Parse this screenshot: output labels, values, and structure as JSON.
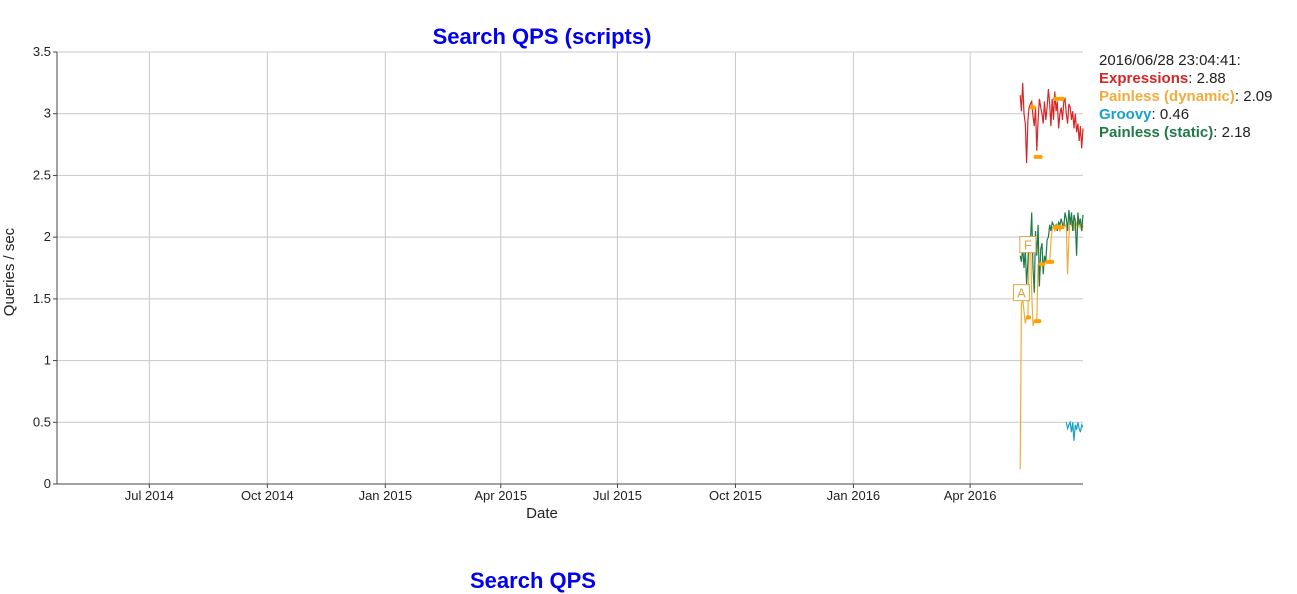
{
  "chart_data": {
    "type": "line",
    "title": "Search QPS (scripts)",
    "title_color": "#0000ee",
    "xlabel": "Date",
    "ylabel": "Queries / sec",
    "ylim": [
      0,
      3.5
    ],
    "xlim": [
      "2014-04-20",
      "2016-06-28"
    ],
    "yticks": [
      "0",
      "0.5",
      "1",
      "1.5",
      "2",
      "2.5",
      "3",
      "3.5"
    ],
    "xticks": [
      {
        "date": "2014-07-01",
        "label": "Jul 2014"
      },
      {
        "date": "2014-10-01",
        "label": "Oct 2014"
      },
      {
        "date": "2015-01-01",
        "label": "Jan 2015"
      },
      {
        "date": "2015-04-01",
        "label": "Apr 2015"
      },
      {
        "date": "2015-07-01",
        "label": "Jul 2015"
      },
      {
        "date": "2015-10-01",
        "label": "Oct 2015"
      },
      {
        "date": "2016-01-01",
        "label": "Jan 2016"
      },
      {
        "date": "2016-04-01",
        "label": "Apr 2016"
      }
    ],
    "grid": true,
    "legend_placement": "top-right, outside plot",
    "legend_timestamp": "2016/06/28 23:04:41:",
    "series": [
      {
        "name": "Expressions",
        "legend_value": "2.88",
        "color": "#d62728",
        "x": [
          "2016-05-10",
          "2016-05-11",
          "2016-05-12",
          "2016-05-13",
          "2016-05-14",
          "2016-05-15",
          "2016-05-16",
          "2016-05-17",
          "2016-05-18",
          "2016-05-19",
          "2016-05-20",
          "2016-05-21",
          "2016-05-22",
          "2016-05-23",
          "2016-05-24",
          "2016-05-25",
          "2016-05-26",
          "2016-05-27",
          "2016-05-28",
          "2016-05-29",
          "2016-05-30",
          "2016-05-31",
          "2016-06-01",
          "2016-06-02",
          "2016-06-03",
          "2016-06-04",
          "2016-06-05",
          "2016-06-06",
          "2016-06-07",
          "2016-06-08",
          "2016-06-09",
          "2016-06-10",
          "2016-06-11",
          "2016-06-12",
          "2016-06-13",
          "2016-06-14",
          "2016-06-15",
          "2016-06-16",
          "2016-06-17",
          "2016-06-18",
          "2016-06-19",
          "2016-06-20",
          "2016-06-21",
          "2016-06-22",
          "2016-06-23",
          "2016-06-24",
          "2016-06-25",
          "2016-06-26",
          "2016-06-27",
          "2016-06-28"
        ],
        "values": [
          3.15,
          3.02,
          3.25,
          3.0,
          2.92,
          2.6,
          2.95,
          3.05,
          3.08,
          3.1,
          2.98,
          2.9,
          3.05,
          2.7,
          2.95,
          3.12,
          3.05,
          3.0,
          2.92,
          3.1,
          2.95,
          3.05,
          3.2,
          3.08,
          2.9,
          3.12,
          2.95,
          3.18,
          3.02,
          3.1,
          2.88,
          3.0,
          3.05,
          2.95,
          3.1,
          3.12,
          3.0,
          2.92,
          3.08,
          3.05,
          2.95,
          3.02,
          2.88,
          3.0,
          2.85,
          2.92,
          2.78,
          2.9,
          2.72,
          2.88
        ]
      },
      {
        "name": "Painless (dynamic)",
        "legend_value": "2.09",
        "color": "#f0ad3c",
        "x": [
          "2016-05-10",
          "2016-05-11",
          "2016-05-12",
          "2016-05-13",
          "2016-05-14",
          "2016-05-15",
          "2016-05-16",
          "2016-05-17",
          "2016-05-18",
          "2016-05-19",
          "2016-05-20",
          "2016-05-21",
          "2016-05-22",
          "2016-05-23",
          "2016-05-24",
          "2016-05-25",
          "2016-05-26",
          "2016-05-27",
          "2016-05-28",
          "2016-05-29",
          "2016-05-30",
          "2016-05-31",
          "2016-06-01",
          "2016-06-02",
          "2016-06-03",
          "2016-06-04",
          "2016-06-05",
          "2016-06-06",
          "2016-06-07",
          "2016-06-08",
          "2016-06-09",
          "2016-06-10",
          "2016-06-11",
          "2016-06-12",
          "2016-06-13",
          "2016-06-14",
          "2016-06-15",
          "2016-06-16",
          "2016-06-17",
          "2016-06-18",
          "2016-06-19",
          "2016-06-20",
          "2016-06-21",
          "2016-06-22",
          "2016-06-23",
          "2016-06-24",
          "2016-06-25",
          "2016-06-26",
          "2016-06-27",
          "2016-06-28"
        ],
        "values": [
          0.12,
          1.45,
          1.5,
          1.4,
          1.3,
          1.35,
          1.35,
          1.9,
          2.0,
          1.55,
          1.28,
          1.32,
          1.32,
          1.32,
          1.78,
          1.65,
          1.78,
          1.78,
          1.75,
          1.8,
          1.8,
          1.8,
          1.8,
          1.8,
          1.95,
          2.08,
          2.08,
          2.05,
          2.08,
          2.08,
          2.08,
          2.05,
          2.08,
          2.1,
          2.12,
          2.1,
          2.08,
          1.7,
          2.0,
          2.15,
          2.1,
          2.12,
          2.05,
          2.15,
          2.1,
          2.12,
          2.08,
          2.1,
          2.05,
          2.09
        ]
      },
      {
        "name": "Groovy",
        "legend_value": "0.46",
        "color": "#17a2c8",
        "x": [
          "2016-06-15",
          "2016-06-16",
          "2016-06-17",
          "2016-06-18",
          "2016-06-19",
          "2016-06-20",
          "2016-06-21",
          "2016-06-22",
          "2016-06-23",
          "2016-06-24",
          "2016-06-25",
          "2016-06-26",
          "2016-06-27",
          "2016-06-28"
        ],
        "values": [
          0.5,
          0.45,
          0.48,
          0.5,
          0.42,
          0.5,
          0.35,
          0.48,
          0.44,
          0.5,
          0.45,
          0.42,
          0.48,
          0.46
        ]
      },
      {
        "name": "Painless (static)",
        "legend_value": "2.18",
        "color": "#1f7a4a",
        "x": [
          "2016-05-10",
          "2016-05-11",
          "2016-05-12",
          "2016-05-13",
          "2016-05-14",
          "2016-05-15",
          "2016-05-16",
          "2016-05-17",
          "2016-05-18",
          "2016-05-19",
          "2016-05-20",
          "2016-05-21",
          "2016-05-22",
          "2016-05-23",
          "2016-05-24",
          "2016-05-25",
          "2016-05-26",
          "2016-05-27",
          "2016-05-28",
          "2016-05-29",
          "2016-05-30",
          "2016-05-31",
          "2016-06-01",
          "2016-06-02",
          "2016-06-03",
          "2016-06-04",
          "2016-06-05",
          "2016-06-06",
          "2016-06-07",
          "2016-06-08",
          "2016-06-09",
          "2016-06-10",
          "2016-06-11",
          "2016-06-12",
          "2016-06-13",
          "2016-06-14",
          "2016-06-15",
          "2016-06-16",
          "2016-06-17",
          "2016-06-18",
          "2016-06-19",
          "2016-06-20",
          "2016-06-21",
          "2016-06-22",
          "2016-06-23",
          "2016-06-24",
          "2016-06-25",
          "2016-06-26",
          "2016-06-27",
          "2016-06-28"
        ],
        "values": [
          1.85,
          1.8,
          1.92,
          1.75,
          1.9,
          1.62,
          1.8,
          2.0,
          1.95,
          2.2,
          1.75,
          1.55,
          2.05,
          1.85,
          2.1,
          1.6,
          1.9,
          1.95,
          1.7,
          1.85,
          1.8,
          1.98,
          2.0,
          2.1,
          2.05,
          2.12,
          2.1,
          2.08,
          2.1,
          2.05,
          2.12,
          2.1,
          2.15,
          2.1,
          2.08,
          2.2,
          2.15,
          2.05,
          2.22,
          2.1,
          2.2,
          2.05,
          2.18,
          2.12,
          1.85,
          2.2,
          2.1,
          2.15,
          2.05,
          2.18
        ]
      }
    ],
    "annotations": [
      {
        "label": "A",
        "date": "2016-05-11",
        "value": 1.55
      },
      {
        "label": "F",
        "date": "2016-05-16",
        "value": 1.94
      }
    ],
    "highlight_segments": [
      {
        "series": "Painless (dynamic)",
        "from": "2016-05-16",
        "to": "2016-05-17",
        "value": 1.35
      },
      {
        "series": "Painless (dynamic)",
        "from": "2016-05-22",
        "to": "2016-05-25",
        "value": 1.32
      },
      {
        "series": "Painless (dynamic)",
        "from": "2016-05-26",
        "to": "2016-05-28",
        "value": 1.78
      },
      {
        "series": "Painless (dynamic)",
        "from": "2016-05-31",
        "to": "2016-06-04",
        "value": 1.8
      },
      {
        "series": "Painless (dynamic)",
        "from": "2016-06-06",
        "to": "2016-06-12",
        "value": 2.08
      },
      {
        "series": "Expressions",
        "from": "2016-05-19",
        "to": "2016-05-21",
        "value": 3.05
      },
      {
        "series": "Expressions",
        "from": "2016-05-22",
        "to": "2016-05-26",
        "value": 2.65
      },
      {
        "series": "Expressions",
        "from": "2016-06-06",
        "to": "2016-06-12",
        "value": 3.12
      }
    ]
  },
  "next_chart_title": "Search QPS"
}
